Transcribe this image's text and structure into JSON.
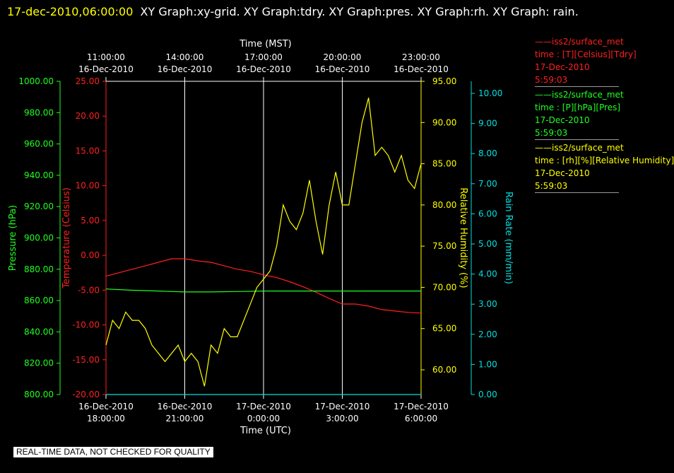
{
  "header": {
    "timestamp": "17-dec-2010,06:00:00",
    "graphs": "XY Graph:xy-grid.  XY Graph:tdry.  XY Graph:pres.  XY Graph:rh.  XY Graph: rain."
  },
  "legend": [
    {
      "line1": "——iss2/surface_met",
      "line2": "time : [T][Celsius][Tdry]",
      "line3": "17-Dec-2010",
      "line4": "5:59:03",
      "color": "#ff2020"
    },
    {
      "line1": "——iss2/surface_met",
      "line2": "time : [P][hPa][Pres]",
      "line3": "17-Dec-2010",
      "line4": "5:59:03",
      "color": "#20ff20"
    },
    {
      "line1": "——iss2/surface_met",
      "line2": "time : [rh][%][Relative Humidity]",
      "line3": "17-Dec-2010",
      "line4": "5:59:03",
      "color": "#ffff00"
    }
  ],
  "note": "REAL-TIME DATA, NOT CHECKED FOR QUALITY",
  "colors": {
    "temperature": "#ff2020",
    "pressure": "#20ff20",
    "humidity": "#ffff00",
    "rain": "#00e0e0",
    "grid": "#ffffff"
  },
  "chart_data": {
    "type": "line",
    "xlabel": "Time (UTC)",
    "x2label": "Time (MST)",
    "x_ticks_utc": [
      {
        "date": "16-Dec-2010",
        "time": "18:00:00"
      },
      {
        "date": "16-Dec-2010",
        "time": "21:00:00"
      },
      {
        "date": "17-Dec-2010",
        "time": "0:00:00"
      },
      {
        "date": "17-Dec-2010",
        "time": "3:00:00"
      },
      {
        "date": "17-Dec-2010",
        "time": "6:00:00"
      }
    ],
    "x_ticks_mst": [
      {
        "date": "16-Dec-2010",
        "time": "11:00:00"
      },
      {
        "date": "16-Dec-2010",
        "time": "14:00:00"
      },
      {
        "date": "16-Dec-2010",
        "time": "17:00:00"
      },
      {
        "date": "16-Dec-2010",
        "time": "20:00:00"
      },
      {
        "date": "16-Dec-2010",
        "time": "23:00:00"
      }
    ],
    "xlim_utc": [
      "16-Dec-2010 18:00",
      "17-Dec-2010 06:00"
    ],
    "grid": true,
    "axes": [
      {
        "id": "pressure",
        "label": "Pressure (hPa)",
        "ylim": [
          800,
          1000
        ],
        "ticks": [
          "800.00",
          "820.00",
          "840.00",
          "860.00",
          "880.00",
          "900.00",
          "920.00",
          "940.00",
          "960.00",
          "980.00",
          "1000.00"
        ]
      },
      {
        "id": "temperature",
        "label": "Temperature (Celsius)",
        "ylim": [
          -20,
          25
        ],
        "ticks": [
          "-20.00",
          "-15.00",
          "-10.00",
          "-5.00",
          "0.00",
          "5.00",
          "10.00",
          "15.00",
          "20.00",
          "25.00"
        ]
      },
      {
        "id": "humidity",
        "label": "Relative Humidity (%)",
        "ylim": [
          57,
          95
        ],
        "ticks": [
          "60.00",
          "65.00",
          "70.00",
          "75.00",
          "80.00",
          "85.00",
          "90.00",
          "95.00"
        ]
      },
      {
        "id": "rain",
        "label": "Rain Rate (mm/min)",
        "ylim": [
          0,
          10.4
        ],
        "ticks": [
          "0.00",
          "1.00",
          "2.00",
          "3.00",
          "4.00",
          "5.00",
          "6.00",
          "7.00",
          "8.00",
          "9.00",
          "10.00"
        ]
      }
    ],
    "series": [
      {
        "axis": "temperature",
        "x_hours_utc": [
          0,
          0.5,
          1,
          1.5,
          2,
          2.5,
          3,
          3.5,
          4,
          4.5,
          5,
          5.5,
          6,
          6.5,
          7,
          7.5,
          8,
          8.5,
          9,
          9.5,
          10,
          10.5,
          11,
          11.5,
          12
        ],
        "values": [
          -3.0,
          -2.5,
          -2.0,
          -1.5,
          -1.0,
          -0.5,
          -0.5,
          -0.8,
          -1.0,
          -1.5,
          -2.0,
          -2.3,
          -2.8,
          -3.2,
          -3.8,
          -4.5,
          -5.3,
          -6.2,
          -7.0,
          -7.0,
          -7.3,
          -7.8,
          -8.0,
          -8.2,
          -8.3
        ]
      },
      {
        "axis": "pressure",
        "x_hours_utc": [
          0,
          1,
          2,
          3,
          4,
          5,
          6,
          7,
          8,
          9,
          10,
          11,
          12
        ],
        "values": [
          867.4,
          866.6,
          866.1,
          865.5,
          865.5,
          865.8,
          866.1,
          866.1,
          866.1,
          866.1,
          866.1,
          866.1,
          866.1
        ]
      },
      {
        "axis": "humidity",
        "x_hours_utc": [
          0,
          0.25,
          0.5,
          0.75,
          1,
          1.25,
          1.5,
          1.75,
          2,
          2.25,
          2.5,
          2.75,
          3,
          3.25,
          3.5,
          3.75,
          4,
          4.25,
          4.5,
          4.75,
          5,
          5.25,
          5.5,
          5.75,
          6,
          6.25,
          6.5,
          6.75,
          7,
          7.25,
          7.5,
          7.75,
          8,
          8.25,
          8.5,
          8.75,
          9,
          9.25,
          9.5,
          9.75,
          10,
          10.25,
          10.5,
          10.75,
          11,
          11.25,
          11.5,
          11.75,
          12
        ],
        "values": [
          63,
          66,
          65,
          67,
          66,
          66,
          65,
          63,
          62,
          61,
          62,
          63,
          61,
          62,
          61,
          58,
          63,
          62,
          65,
          64,
          64,
          66,
          68,
          70,
          71,
          72,
          75,
          80,
          78,
          77,
          79,
          83,
          78,
          74,
          80,
          84,
          80,
          80,
          85,
          90,
          93,
          86,
          87,
          86,
          84,
          86,
          83,
          82,
          85
        ]
      },
      {
        "axis": "rain",
        "x_hours_utc": [
          0,
          12
        ],
        "values": [
          0,
          0
        ]
      }
    ]
  }
}
